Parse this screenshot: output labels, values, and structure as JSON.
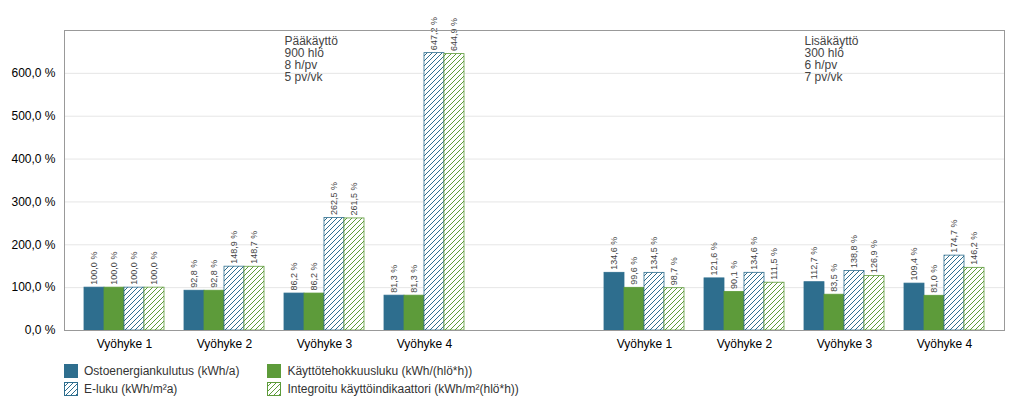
{
  "chart_data": {
    "type": "bar",
    "categories": [
      "Vyöhyke 1",
      "Vyöhyke 2",
      "Vyöhyke 3",
      "Vyöhyke 4",
      "Vyöhyke 1",
      "Vyöhyke 2",
      "Vyöhyke 3",
      "Vyöhyke 4"
    ],
    "series": [
      {
        "name": "Ostoenergiankulutus (kWh/a)",
        "color": "#2E6E8E",
        "values": [
          100.0,
          92.8,
          86.2,
          81.3,
          134.6,
          121.6,
          112.7,
          109.4
        ],
        "value_labels": [
          "100,0 %",
          "92,8 %",
          "86,2 %",
          "81,3 %",
          "134,6 %",
          "121,6 %",
          "112,7 %",
          "109,4 %"
        ]
      },
      {
        "name": "Käyttötehokkuusluku (kWh/(hlö*h))",
        "color": "#5D9B3A",
        "values": [
          100.0,
          92.8,
          86.2,
          81.3,
          99.6,
          90.1,
          83.5,
          81.0
        ],
        "value_labels": [
          "100,0 %",
          "92,8 %",
          "86,2 %",
          "81,3 %",
          "99,6 %",
          "90,1 %",
          "83,5 %",
          "81,0 %"
        ]
      },
      {
        "name": "E-luku (kWh/m²a)",
        "color": "#2E6E8E",
        "values": [
          100.0,
          148.9,
          262.5,
          647.2,
          134.5,
          134.6,
          138.8,
          174.7
        ],
        "value_labels": [
          "100,0 %",
          "148,9 %",
          "262,5 %",
          "647,2 %",
          "134,5 %",
          "134,6 %",
          "138,8 %",
          "174,7 %"
        ]
      },
      {
        "name": "Integroitu käyttöindikaattori (kWh/m²(hlö*h))",
        "color": "#5D9B3A",
        "values": [
          100.0,
          148.7,
          261.5,
          644.9,
          98.7,
          111.5,
          126.9,
          146.2
        ],
        "value_labels": [
          "100,0 %",
          "148,7 %",
          "261,5 %",
          "644,9 %",
          "98,7 %",
          "111,5 %",
          "126,9 %",
          "146,2 %"
        ]
      }
    ],
    "ylim": [
      0,
      700
    ],
    "yticks": [
      {
        "value": 0,
        "label": "0,0 %"
      },
      {
        "value": 100,
        "label": "100,0 %"
      },
      {
        "value": 200,
        "label": "200,0 %"
      },
      {
        "value": 300,
        "label": "300,0 %"
      },
      {
        "value": 400,
        "label": "400,0 %"
      },
      {
        "value": 500,
        "label": "500,0 %"
      },
      {
        "value": 600,
        "label": "600,0 %"
      }
    ],
    "grid": true,
    "legend": "bottom",
    "data_labels": true,
    "annotations": [
      [
        "Pääkäyttö",
        "900 hlö",
        "8 h/pv",
        "5 pv/vk"
      ],
      [
        "Lisäkäyttö",
        "300 hlö",
        "6 h/pv",
        "7 pv/vk"
      ]
    ]
  }
}
